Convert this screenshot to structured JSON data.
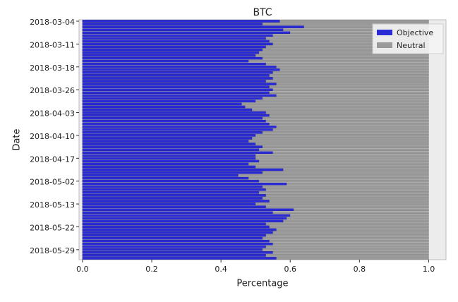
{
  "chart_data": {
    "type": "stacked-barh",
    "title": "BTC",
    "xlabel": "Percentage",
    "ylabel": "Date",
    "categories": [
      "2018-03-04",
      null,
      null,
      null,
      null,
      null,
      null,
      null,
      "2018-03-11",
      null,
      null,
      null,
      null,
      null,
      null,
      null,
      "2018-03-18",
      null,
      null,
      null,
      null,
      null,
      null,
      null,
      "2018-03-26",
      null,
      null,
      null,
      null,
      null,
      null,
      null,
      "2018-04-03",
      null,
      null,
      null,
      null,
      null,
      null,
      null,
      "2018-04-10",
      null,
      null,
      null,
      null,
      null,
      null,
      null,
      "2018-04-17",
      null,
      null,
      null,
      null,
      null,
      null,
      null,
      "2018-05-02",
      null,
      null,
      null,
      null,
      null,
      null,
      null,
      "2018-05-13",
      null,
      null,
      null,
      null,
      null,
      null,
      null,
      "2018-05-22",
      null,
      null,
      null,
      null,
      null,
      null,
      null,
      "2018-05-29",
      null,
      null,
      null
    ],
    "series": [
      {
        "name": "Objective",
        "color": "#2a2ad6",
        "values": [
          0.57,
          0.52,
          0.64,
          0.58,
          0.6,
          0.55,
          0.53,
          0.54,
          0.55,
          0.53,
          0.52,
          0.51,
          0.5,
          0.52,
          0.48,
          0.53,
          0.56,
          0.57,
          0.55,
          0.54,
          0.55,
          0.53,
          0.56,
          0.54,
          0.55,
          0.54,
          0.56,
          0.52,
          0.5,
          0.46,
          0.47,
          0.49,
          0.53,
          0.54,
          0.52,
          0.53,
          0.54,
          0.56,
          0.55,
          0.52,
          0.5,
          0.49,
          0.48,
          0.5,
          0.52,
          0.51,
          0.55,
          0.5,
          0.5,
          0.51,
          0.48,
          0.5,
          0.58,
          0.52,
          0.45,
          0.48,
          0.51,
          0.59,
          0.52,
          0.53,
          0.51,
          0.53,
          0.52,
          0.54,
          0.5,
          0.53,
          0.61,
          0.55,
          0.6,
          0.59,
          0.58,
          0.53,
          0.54,
          0.56,
          0.55,
          0.53,
          0.52,
          0.54,
          0.55,
          0.53,
          0.52,
          0.55,
          0.53,
          0.56
        ]
      },
      {
        "name": "Neutral",
        "color": "#9a9a9a",
        "values": [
          0.43,
          0.48,
          0.36,
          0.42,
          0.4,
          0.45,
          0.47,
          0.46,
          0.45,
          0.47,
          0.48,
          0.49,
          0.5,
          0.48,
          0.52,
          0.47,
          0.44,
          0.43,
          0.45,
          0.46,
          0.45,
          0.47,
          0.44,
          0.46,
          0.45,
          0.46,
          0.44,
          0.48,
          0.5,
          0.54,
          0.53,
          0.51,
          0.47,
          0.46,
          0.48,
          0.47,
          0.46,
          0.44,
          0.45,
          0.48,
          0.5,
          0.51,
          0.52,
          0.5,
          0.48,
          0.49,
          0.45,
          0.5,
          0.5,
          0.49,
          0.52,
          0.5,
          0.42,
          0.48,
          0.55,
          0.52,
          0.49,
          0.41,
          0.48,
          0.47,
          0.49,
          0.47,
          0.48,
          0.46,
          0.5,
          0.47,
          0.39,
          0.45,
          0.4,
          0.41,
          0.42,
          0.47,
          0.46,
          0.44,
          0.45,
          0.47,
          0.48,
          0.46,
          0.45,
          0.47,
          0.48,
          0.45,
          0.47,
          0.44
        ]
      }
    ],
    "xlim": [
      -0.01,
      1.05
    ],
    "xticks": [
      {
        "value": 0,
        "label": "0.0"
      },
      0.2,
      0.4,
      0.6,
      0.8,
      {
        "value": 1,
        "label": "1.0"
      }
    ],
    "legend": "upper right"
  }
}
